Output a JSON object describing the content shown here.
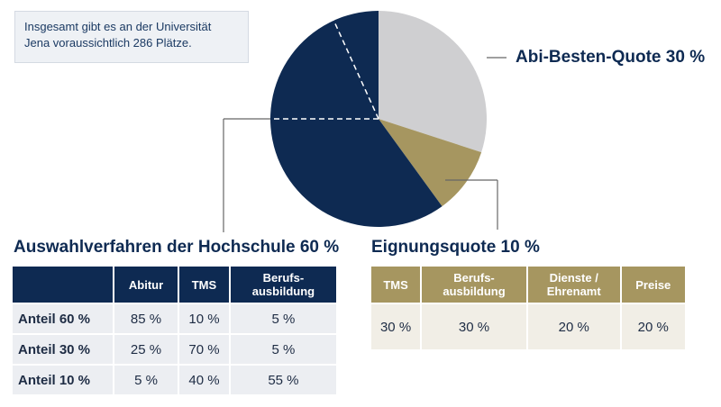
{
  "info_text": "Insgesamt gibt es an der Universität Jena voraussichtlich 286 Plätze.",
  "colors": {
    "navy": "#0e2a52",
    "grey": "#cfcfd1",
    "gold": "#a69660",
    "table_bg": "#eceef2",
    "gold_bg": "#f1eee6"
  },
  "chart_data": {
    "type": "pie",
    "slices": [
      {
        "label": "Abi-Besten-Quote 30 %",
        "value": 30,
        "color": "#cfcfd1"
      },
      {
        "label": "Eignungsquote 10 %",
        "value": 10,
        "color": "#a69660"
      },
      {
        "label": "Auswahlverfahren der Hochschule 60 %",
        "value": 60,
        "color": "#0e2a52"
      }
    ]
  },
  "labels": {
    "abi": "Abi-Besten-Quote 30 %",
    "hochschule": "Auswahlverfahren der Hochschule 60 %",
    "eignung": "Eignungsquote 10 %"
  },
  "hochschule_table": {
    "headers": [
      "",
      "Abitur",
      "TMS",
      "Berufs-\nausbildung"
    ],
    "rows": [
      [
        "Anteil 60 %",
        "85 %",
        "10 %",
        "5 %"
      ],
      [
        "Anteil 30 %",
        "25 %",
        "70 %",
        "5 %"
      ],
      [
        "Anteil 10 %",
        "5 %",
        "40 %",
        "55 %"
      ]
    ]
  },
  "eignung_table": {
    "headers": [
      "TMS",
      "Berufs-\nausbildung",
      "Dienste /\nEhrenamt",
      "Preise"
    ],
    "rows": [
      [
        "30 %",
        "30 %",
        "20 %",
        "20 %"
      ]
    ]
  }
}
